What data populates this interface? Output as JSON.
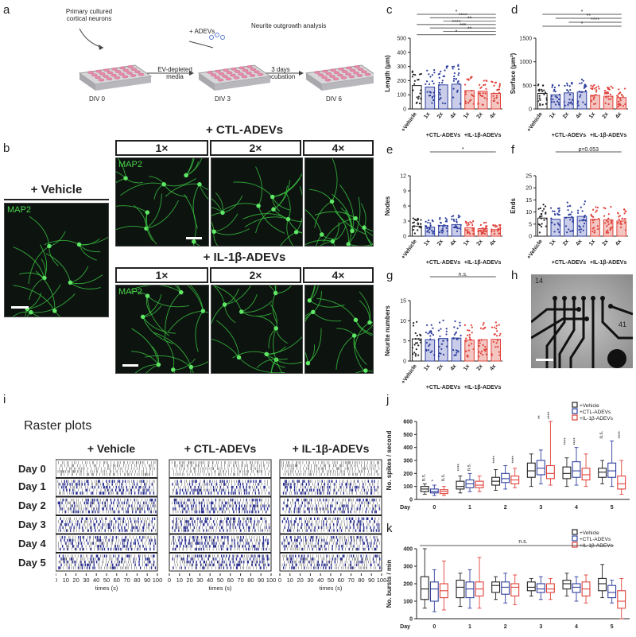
{
  "panel_letters": {
    "a": "a",
    "b": "b",
    "c": "c",
    "d": "d",
    "e": "e",
    "f": "f",
    "g": "g",
    "h": "h",
    "i": "i",
    "j": "j",
    "k": "k"
  },
  "workflow": {
    "neurons": "Primary cultured\ncortical neurons",
    "adevs": "+ ADEVs",
    "analysis": "Neurite outgrowth analysis",
    "ev_media": "EV-depleted\nmedia",
    "incubation": "3 days\nincubation",
    "div0": "DIV 0",
    "div3": "DIV 3",
    "div6": "DIV 6"
  },
  "micrographs": {
    "vehicle_title": "+ Vehicle",
    "ctl_title": "+ CTL-ADEVs",
    "il_title": "+ IL-1β-ADEVs",
    "doses": [
      "1×",
      "2×",
      "4×"
    ],
    "stain": "MAP2"
  },
  "mea": {
    "top_label": "14",
    "right_label": "41"
  },
  "raster": {
    "title": "Raster plots",
    "groups": [
      "+ Vehicle",
      "+ CTL-ADEVs",
      "+ IL-1β-ADEVs"
    ],
    "days": [
      "Day 0",
      "Day 1",
      "Day 2",
      "Day 3",
      "Day 4",
      "Day 5"
    ],
    "ticks": [
      "0",
      "10",
      "20",
      "30",
      "40",
      "50",
      "60",
      "70",
      "80",
      "90",
      "100"
    ],
    "xlabel": "times (s)"
  },
  "colors": {
    "vehicle": "#222222",
    "ctl": "#2e3f9e",
    "il": "#e0413a",
    "ctl_light": "#c9cde9",
    "il_light": "#f4c6c1",
    "raster_blue": "#2a2f8f"
  },
  "chart_data": [
    {
      "id": "c",
      "type": "bar",
      "ylabel": "Length (μm)",
      "ylim": [
        0,
        500
      ],
      "yticks": [
        "0",
        "100",
        "200",
        "300",
        "400",
        "500"
      ],
      "categories": [
        "+Vehicle",
        "1x",
        "2x",
        "4x",
        "1x",
        "2x",
        "4x"
      ],
      "group_labels": [
        "+CTL-ADEVs",
        "+IL-1β-ADEVs"
      ],
      "values": [
        165,
        155,
        170,
        175,
        130,
        125,
        110
      ],
      "significance": [
        "*",
        "****",
        "**",
        "****",
        "***",
        "**",
        "*"
      ]
    },
    {
      "id": "d",
      "type": "bar",
      "ylabel": "Surface (μm²)",
      "ylim": [
        0,
        1500
      ],
      "yticks": [
        "0",
        "500",
        "1000",
        "1500"
      ],
      "categories": [
        "+Vehicle",
        "1x",
        "2x",
        "4x",
        "1x",
        "2x",
        "4x"
      ],
      "group_labels": [
        "+CTL-ADEVs",
        "+IL-1β-ADEVs"
      ],
      "values": [
        330,
        300,
        340,
        360,
        290,
        270,
        240
      ],
      "significance": [
        "*",
        "**",
        "****",
        "*"
      ]
    },
    {
      "id": "e",
      "type": "bar",
      "ylabel": "Nodes",
      "ylim": [
        0,
        12
      ],
      "yticks": [
        "0",
        "3",
        "6",
        "9",
        "12"
      ],
      "categories": [
        "+Vehicle",
        "1x",
        "2x",
        "4x",
        "1x",
        "2x",
        "4x"
      ],
      "group_labels": [
        "+CTL-ADEVs",
        "+IL-1β-ADEVs"
      ],
      "values": [
        2.0,
        1.8,
        2.1,
        2.3,
        1.7,
        1.5,
        1.3
      ],
      "significance": [
        "*"
      ]
    },
    {
      "id": "f",
      "type": "bar",
      "ylabel": "Ends",
      "ylim": [
        0,
        25
      ],
      "yticks": [
        "0",
        "5",
        "10",
        "15",
        "20",
        "25"
      ],
      "categories": [
        "+Vehicle",
        "1x",
        "2x",
        "4x",
        "1x",
        "2x",
        "4x"
      ],
      "group_labels": [
        "+CTL-ADEVs",
        "+IL-1β-ADEVs"
      ],
      "values": [
        7.5,
        7.0,
        7.8,
        8.2,
        7.0,
        6.8,
        6.3
      ],
      "significance": [
        "p=0.053"
      ]
    },
    {
      "id": "g",
      "type": "bar",
      "ylabel": "Neurite numbers",
      "ylim": [
        0,
        15
      ],
      "yticks": [
        "0",
        "5",
        "10",
        "15"
      ],
      "categories": [
        "+Vehicle",
        "1x",
        "2x",
        "4x",
        "1x",
        "2x",
        "4x"
      ],
      "group_labels": [
        "+CTL-ADEVs",
        "+IL-1β-ADEVs"
      ],
      "values": [
        5.5,
        5.3,
        5.6,
        5.7,
        5.2,
        5.3,
        5.4
      ],
      "significance": [
        "n.s."
      ]
    },
    {
      "id": "j",
      "type": "box",
      "ylabel": "No. spikes / second",
      "ylim": [
        0,
        600
      ],
      "yticks": [
        "0",
        "100",
        "200",
        "300",
        "400",
        "500",
        "600"
      ],
      "xlabel": "Day",
      "days": [
        "0",
        "1",
        "2",
        "3",
        "4",
        "5"
      ],
      "legend": [
        "+Vehicle",
        "+CTL-ADEVs",
        "+IL-1β-ADEVs"
      ],
      "series": [
        {
          "name": "+Vehicle",
          "box": [
            [
              40,
              60,
              80,
              100,
              120
            ],
            [
              50,
              80,
              100,
              140,
              180
            ],
            [
              70,
              110,
              140,
              170,
              230
            ],
            [
              100,
              170,
              220,
              280,
              350
            ],
            [
              100,
              160,
              200,
              250,
              320
            ],
            [
              120,
              170,
              210,
              240,
              300
            ]
          ]
        },
        {
          "name": "+CTL-ADEVs",
          "box": [
            [
              30,
              50,
              60,
              80,
              110
            ],
            [
              60,
              90,
              120,
              150,
              200
            ],
            [
              80,
              130,
              160,
              200,
              260
            ],
            [
              120,
              190,
              240,
              300,
              380
            ],
            [
              110,
              170,
              220,
              290,
              400
            ],
            [
              100,
              170,
              220,
              280,
              450
            ]
          ]
        },
        {
          "name": "+IL-1β-ADEVs",
          "box": [
            [
              30,
              45,
              60,
              75,
              100
            ],
            [
              60,
              90,
              110,
              140,
              180
            ],
            [
              90,
              120,
              150,
              180,
              240
            ],
            [
              110,
              160,
              200,
              260,
              600
            ],
            [
              100,
              150,
              190,
              240,
              350
            ],
            [
              40,
              80,
              120,
              180,
              300
            ]
          ]
        }
      ],
      "significance": [
        "n.s.",
        "*",
        "n.s.",
        "****",
        "n.s.",
        "****",
        "****",
        "**",
        "****",
        "****",
        "****",
        "****",
        "n.s."
      ]
    },
    {
      "id": "k",
      "type": "box",
      "ylabel": "No. bursts / min",
      "ylim": [
        0,
        400
      ],
      "yticks": [
        "0",
        "100",
        "200",
        "300",
        "400"
      ],
      "xlabel": "Day",
      "days": [
        "0",
        "1",
        "2",
        "3",
        "4",
        "5"
      ],
      "legend": [
        "+Vehicle",
        "+CTL-ADEVs",
        "+IL-1β-ADEVs"
      ],
      "series": [
        {
          "name": "+Vehicle",
          "box": [
            [
              60,
              110,
              170,
              240,
              400
            ],
            [
              70,
              120,
              180,
              220,
              260
            ],
            [
              110,
              150,
              190,
              210,
              240
            ],
            [
              130,
              160,
              180,
              210,
              230
            ],
            [
              130,
              170,
              200,
              220,
              260
            ],
            [
              120,
              160,
              200,
              230,
              310
            ]
          ]
        },
        {
          "name": "+CTL-ADEVs",
          "box": [
            [
              40,
              100,
              170,
              210,
              280
            ],
            [
              60,
              120,
              170,
              210,
              280
            ],
            [
              90,
              140,
              180,
              210,
              260
            ],
            [
              110,
              150,
              170,
              200,
              240
            ],
            [
              100,
              150,
              180,
              200,
              240
            ],
            [
              90,
              120,
              150,
              190,
              220
            ]
          ]
        },
        {
          "name": "+IL-1β-ADEVs",
          "box": [
            [
              50,
              120,
              160,
              200,
              330
            ],
            [
              60,
              130,
              170,
              210,
              350
            ],
            [
              80,
              130,
              180,
              200,
              250
            ],
            [
              110,
              150,
              170,
              200,
              230
            ],
            [
              90,
              130,
              170,
              210,
              250
            ],
            [
              0,
              60,
              100,
              160,
              230
            ]
          ]
        }
      ],
      "significance": [
        "n.s."
      ]
    }
  ]
}
